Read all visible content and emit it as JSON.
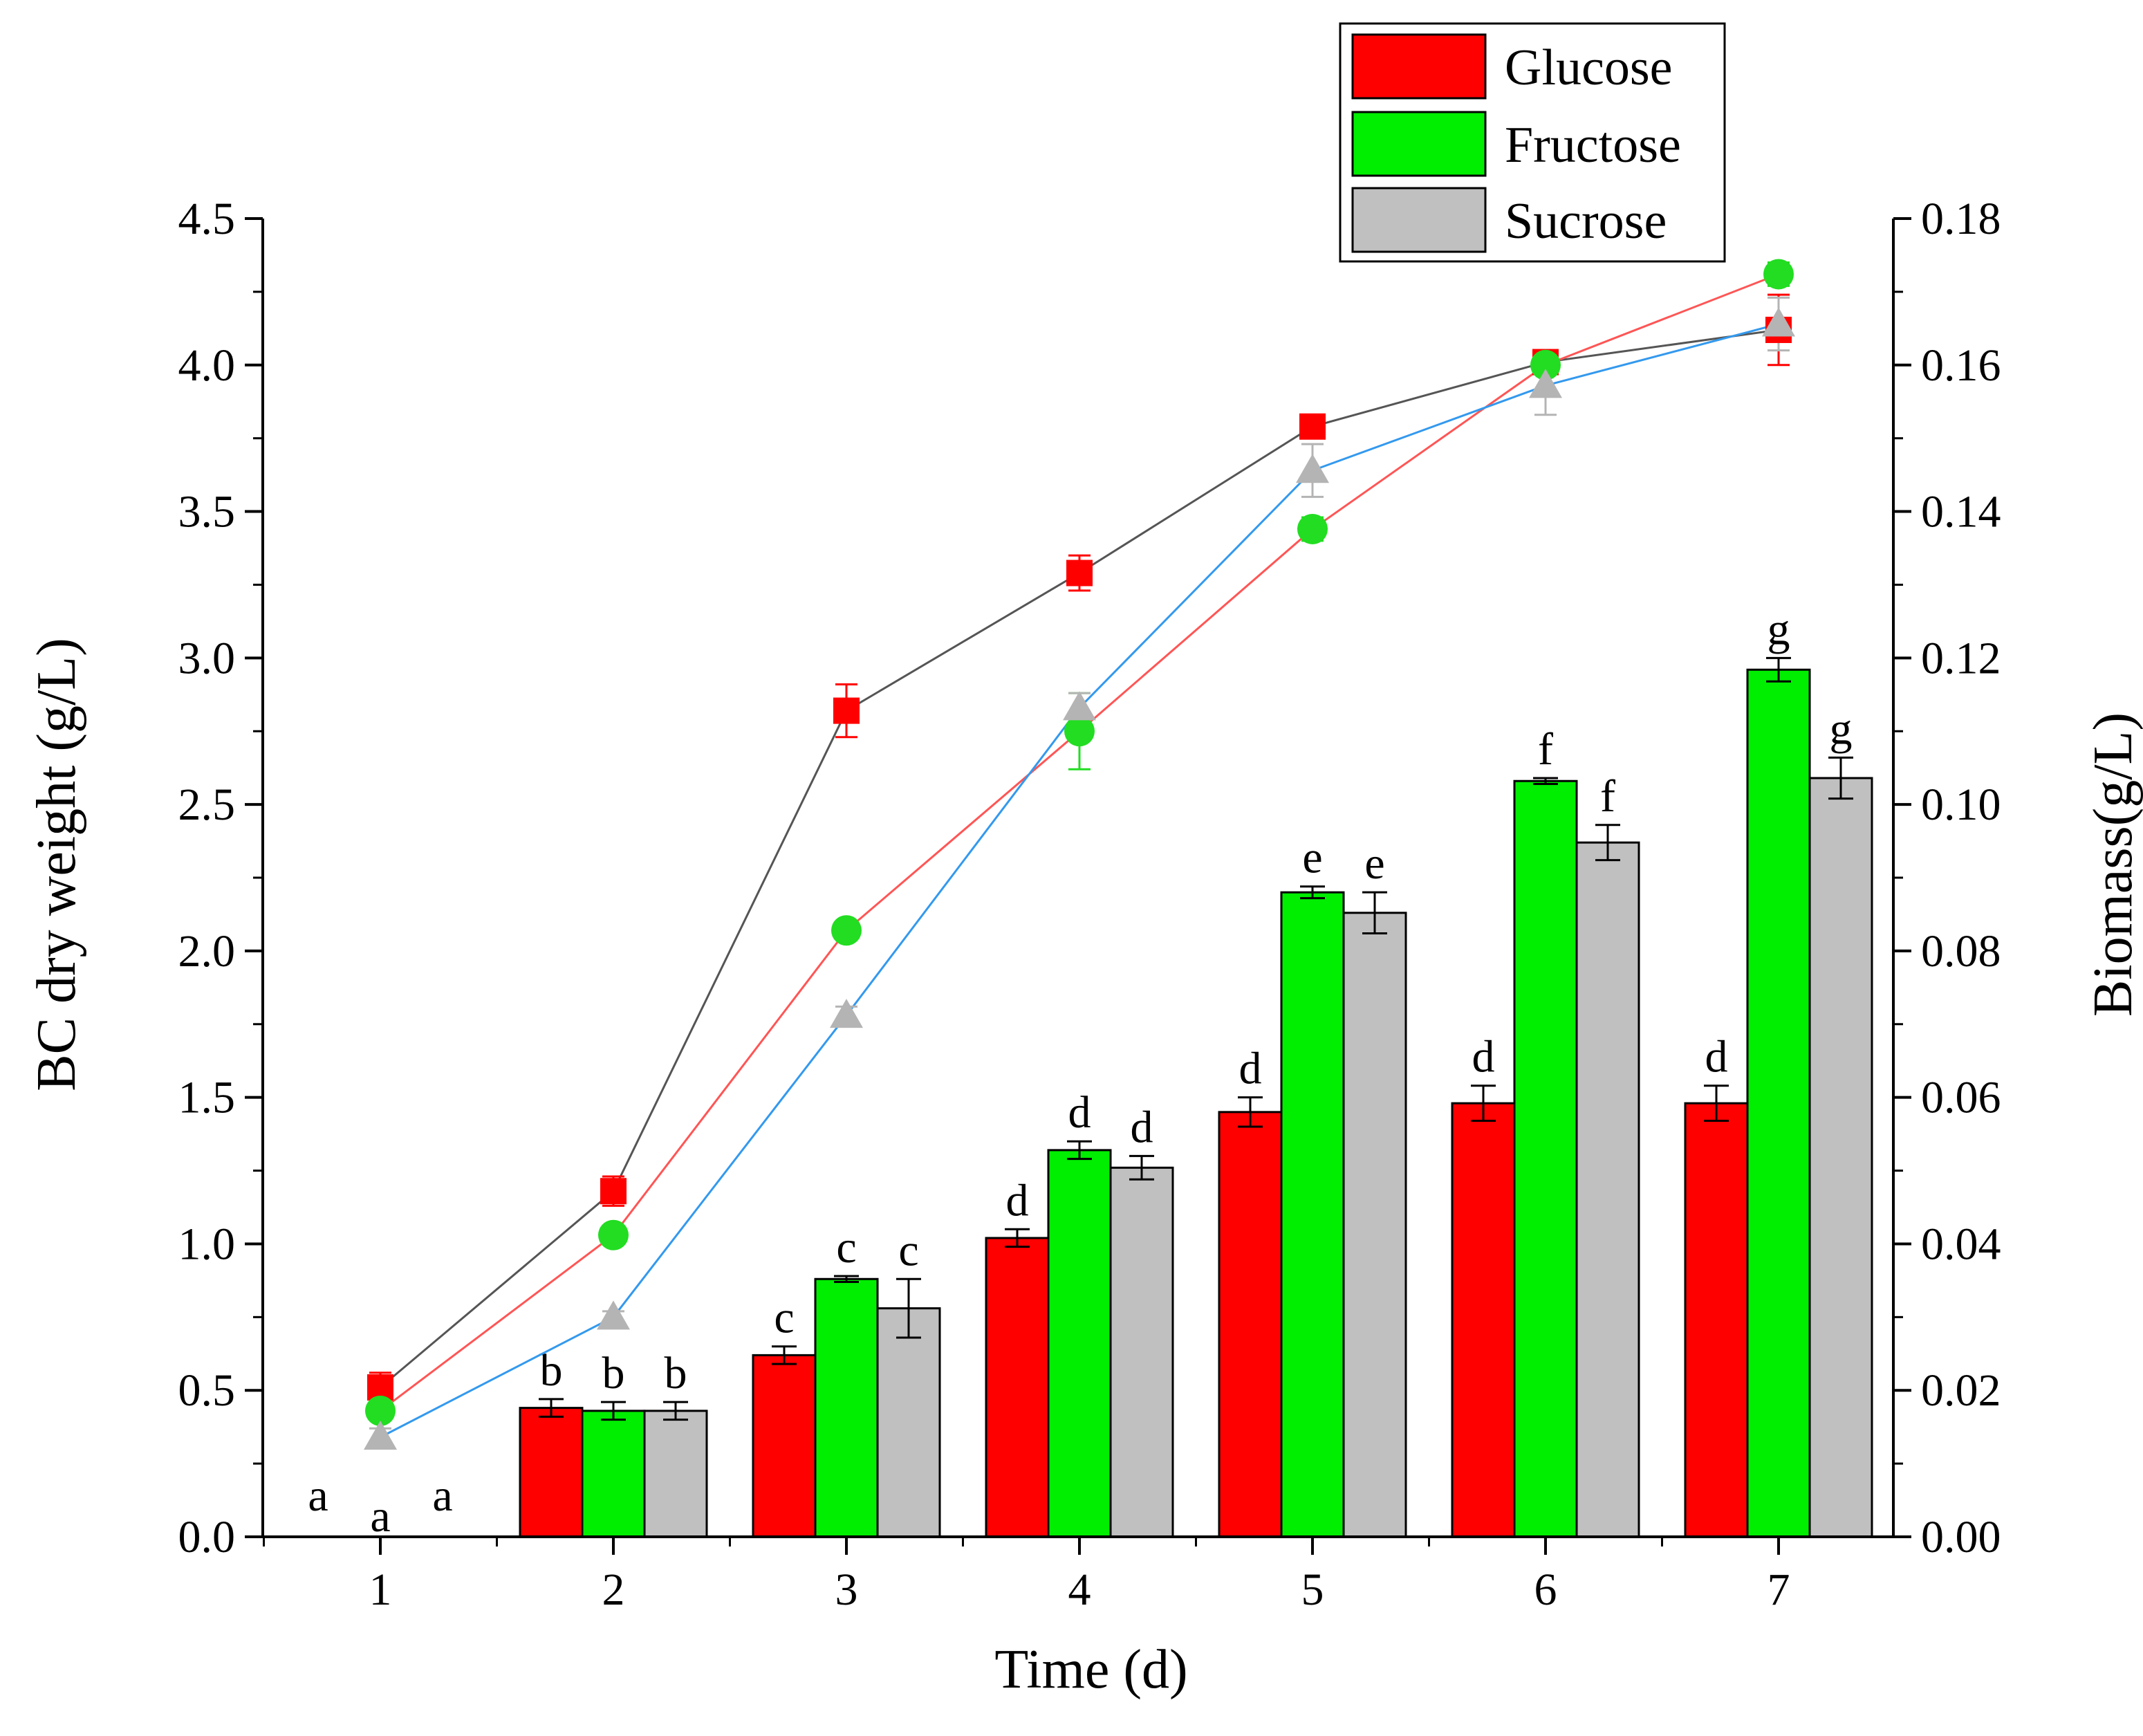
{
  "chart_data": {
    "type": "bar",
    "xlabel": "Time (d)",
    "ylabel_left": "BC dry weight (g/L)",
    "ylabel_right": "Biomass(g/L)",
    "categories": [
      "1",
      "2",
      "3",
      "4",
      "5",
      "6",
      "7"
    ],
    "ylim_left": [
      0,
      4.5
    ],
    "ylim_right": [
      0,
      0.18
    ],
    "yticks_left": [
      "0.0",
      "0.5",
      "1.0",
      "1.5",
      "2.0",
      "2.5",
      "3.0",
      "3.5",
      "4.0",
      "4.5"
    ],
    "yticks_right": [
      "0.00",
      "0.02",
      "0.04",
      "0.06",
      "0.08",
      "0.10",
      "0.12",
      "0.14",
      "0.16",
      "0.18"
    ],
    "grid": false,
    "legend_position": "top-right",
    "series": [
      {
        "name": "Glucose",
        "color": "#ff0000",
        "bar_values": [
          0,
          0.44,
          0.62,
          1.02,
          1.45,
          1.48,
          1.48
        ],
        "bar_errors": [
          0,
          0.03,
          0.03,
          0.03,
          0.05,
          0.06,
          0.06
        ],
        "letters": [
          "a",
          "b",
          "c",
          "d",
          "d",
          "d",
          "d"
        ],
        "line_values": [
          0.51,
          1.18,
          2.82,
          3.29,
          3.79,
          4.01,
          4.12
        ],
        "line_errors": [
          0.05,
          0.05,
          0.09,
          0.06,
          0.03,
          0.03,
          0.12
        ],
        "line_marker": "square",
        "marker_color": "#ff0000",
        "line_color": "#555555"
      },
      {
        "name": "Fructose",
        "color": "#00ee00",
        "bar_values": [
          0,
          0.43,
          0.88,
          1.32,
          2.2,
          2.58,
          2.96
        ],
        "bar_errors": [
          0,
          0.03,
          0.01,
          0.03,
          0.02,
          0.01,
          0.04
        ],
        "letters": [
          "a",
          "b",
          "c",
          "d",
          "e",
          "f",
          "g"
        ],
        "line_values": [
          0.43,
          1.03,
          2.07,
          2.75,
          3.44,
          4.0,
          4.31
        ],
        "line_errors": [
          0.03,
          0.03,
          0.03,
          0.13,
          0.04,
          0.03,
          0.04
        ],
        "line_marker": "circle",
        "marker_color": "#22dd22",
        "line_color": "#ff5555"
      },
      {
        "name": "Sucrose",
        "color": "#c0c0c0",
        "bar_values": [
          0,
          0.43,
          0.78,
          1.26,
          2.13,
          2.37,
          2.59
        ],
        "bar_errors": [
          0,
          0.03,
          0.1,
          0.04,
          0.07,
          0.06,
          0.07
        ],
        "letters": [
          "a",
          "b",
          "c",
          "d",
          "e",
          "f",
          "g"
        ],
        "line_values": [
          0.34,
          0.75,
          1.78,
          2.83,
          3.64,
          3.93,
          4.14
        ],
        "line_errors": [
          0.03,
          0.02,
          0.03,
          0.05,
          0.09,
          0.1,
          0.09
        ],
        "line_marker": "triangle",
        "marker_color": "#b4b4b4",
        "line_color": "#3399ee"
      }
    ]
  }
}
